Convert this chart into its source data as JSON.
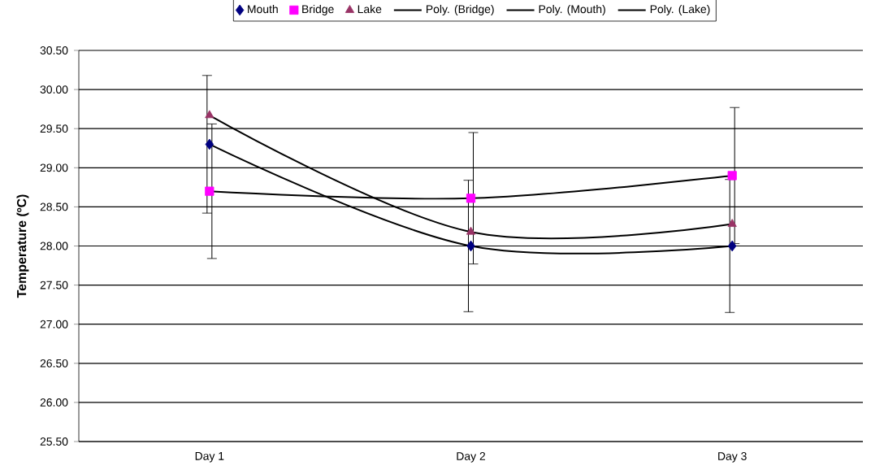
{
  "chart_data": {
    "type": "scatter",
    "ylabel": "Temperature (ºC)",
    "categories": [
      "Day 1",
      "Day 2",
      "Day 3"
    ],
    "series": [
      {
        "name": "Mouth",
        "color": "#000080",
        "marker": "diamond",
        "values": [
          29.3,
          28.0,
          28.0
        ],
        "errors": [
          0.88,
          0.84,
          0.85
        ]
      },
      {
        "name": "Bridge",
        "color": "#ff00ff",
        "marker": "square",
        "values": [
          28.7,
          28.61,
          28.9
        ],
        "errors": [
          0.86,
          0.84,
          0.87
        ]
      },
      {
        "name": "Lake",
        "color": "#993366",
        "marker": "triangle",
        "values": [
          29.67,
          28.18,
          28.28
        ]
      },
      {
        "name": "Poly. (Bridge)",
        "type": "line",
        "color": "#000000",
        "marker": "none",
        "values": [
          28.7,
          28.61,
          28.9
        ]
      },
      {
        "name": "Poly. (Mouth)",
        "type": "line",
        "color": "#000000",
        "marker": "none",
        "values": [
          29.3,
          28.0,
          28.0
        ]
      },
      {
        "name": "Poly. (Lake)",
        "type": "line",
        "color": "#000000",
        "marker": "none",
        "values": [
          29.67,
          28.18,
          28.28
        ]
      }
    ],
    "ylim": [
      25.5,
      30.5
    ],
    "yticks": [
      {
        "value": 25.5,
        "label": "25.50"
      },
      {
        "value": 26.0,
        "label": "26.00"
      },
      {
        "value": 26.5,
        "label": "26.50"
      },
      {
        "value": 27.0,
        "label": "27.00"
      },
      {
        "value": 27.5,
        "label": "27.50"
      },
      {
        "value": 28.0,
        "label": "28.00"
      },
      {
        "value": 28.5,
        "label": "28.50"
      },
      {
        "value": 29.0,
        "label": "29.00"
      },
      {
        "value": 29.5,
        "label": "29.50"
      },
      {
        "value": 30.0,
        "label": "30.00"
      },
      {
        "value": 30.5,
        "label": "30.50"
      }
    ],
    "grid": "y",
    "legend": "top"
  }
}
